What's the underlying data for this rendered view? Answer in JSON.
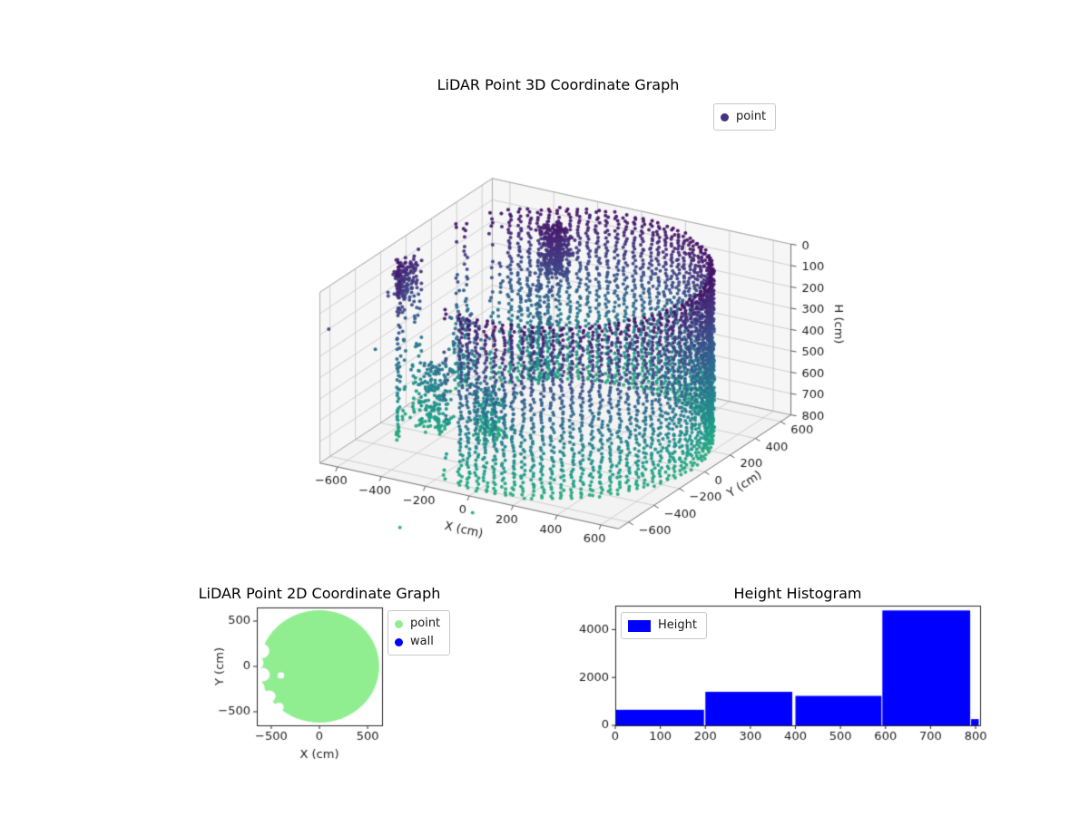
{
  "figure": {
    "background": "#ffffff"
  },
  "chart_data": [
    {
      "id": "plot3d",
      "type": "scatter3d",
      "title": "LiDAR Point 3D Coordinate Graph",
      "xlabel": "X (cm)",
      "ylabel": "Y (cm)",
      "zlabel": "H (cm)",
      "xlim": [
        -680,
        680
      ],
      "ylim": [
        -680,
        680
      ],
      "zlim": [
        0,
        800
      ],
      "z_axis_inverted": true,
      "xticks": [
        -600,
        -400,
        -200,
        0,
        200,
        400,
        600
      ],
      "yticks": [
        -600,
        -400,
        -200,
        0,
        200,
        400,
        600
      ],
      "zticks": [
        0,
        100,
        200,
        300,
        400,
        500,
        600,
        700,
        800
      ],
      "grid": true,
      "legend_loc": "upper right",
      "legend": [
        {
          "label": "point",
          "color": "#46327e"
        }
      ],
      "colormap": "viridis",
      "view": {
        "azim_deg": -60,
        "elev_deg": 30,
        "box_aspect_z": 0.75
      },
      "cloud": {
        "wall_radius_cm": 620,
        "height_range_cm": [
          0,
          800
        ],
        "angle_step_deg": 3.6,
        "height_step_cm": 14,
        "gap_angle_deg": [
          140,
          262
        ],
        "gap_keep_ratio": 0.18,
        "color_t_range": [
          0.05,
          0.62
        ]
      },
      "noise_clusters": [
        {
          "x": -250,
          "y": 430,
          "h": [
            20,
            260
          ],
          "spread": 70,
          "count": 280
        },
        {
          "x": -240,
          "y": 300,
          "h": [
            250,
            700
          ],
          "spread": 95,
          "count": 130
        },
        {
          "x": -650,
          "y": -60,
          "h": [
            90,
            260
          ],
          "spread": 60,
          "count": 110
        },
        {
          "x": -430,
          "y": -210,
          "h": [
            470,
            790
          ],
          "spread": 85,
          "count": 170
        },
        {
          "x": -210,
          "y": -150,
          "h": [
            550,
            795
          ],
          "spread": 95,
          "count": 160
        },
        {
          "x": -430,
          "y": 40,
          "h": [
            330,
            640
          ],
          "spread": 75,
          "count": 90
        }
      ],
      "outliers": [
        [
          -680,
          -610,
          200
        ],
        [
          -350,
          -620,
          1050
        ],
        [
          -670,
          -260,
          430
        ],
        [
          -100,
          -480,
          980
        ]
      ]
    },
    {
      "id": "plot2d",
      "type": "scatter",
      "title": "LiDAR Point 2D Coordinate Graph",
      "xlabel": "X (cm)",
      "ylabel": "Y (cm)",
      "xlim": [
        -650,
        650
      ],
      "ylim": [
        -650,
        650
      ],
      "xticks": [
        -500,
        0,
        500
      ],
      "yticks": [
        -500,
        0,
        500
      ],
      "legend_loc": "upper right outside",
      "legend": [
        {
          "label": "point",
          "color": "#90ee90"
        },
        {
          "label": "wall",
          "color": "#0000ff"
        }
      ],
      "disk": {
        "radius_cm": 620,
        "color": "#90ee90",
        "notches": [
          {
            "x": -600,
            "y": 170,
            "r": 80
          },
          {
            "x": -650,
            "y": 40,
            "r": 70
          },
          {
            "x": -590,
            "y": -90,
            "r": 75
          },
          {
            "x": -630,
            "y": -230,
            "r": 60
          },
          {
            "x": -520,
            "y": -330,
            "r": 65
          },
          {
            "x": -420,
            "y": -450,
            "r": 50
          },
          {
            "x": -400,
            "y": -100,
            "r": 35
          }
        ]
      }
    },
    {
      "id": "histogram",
      "type": "bar",
      "title": "Height Histogram",
      "xlabel": "",
      "ylabel": "",
      "xlim": [
        0,
        810
      ],
      "ylim": [
        0,
        5000
      ],
      "xticks": [
        0,
        100,
        200,
        300,
        400,
        500,
        600,
        700,
        800
      ],
      "yticks": [
        0,
        2000,
        4000
      ],
      "bar_color": "#0000ff",
      "legend_loc": "upper left",
      "legend": [
        {
          "label": "Height",
          "color": "#0000ff"
        }
      ],
      "bins": [
        [
          0,
          197,
          650
        ],
        [
          200,
          393,
          1400
        ],
        [
          400,
          591,
          1230
        ],
        [
          593,
          788,
          4800
        ],
        [
          790,
          807,
          260
        ]
      ]
    }
  ]
}
